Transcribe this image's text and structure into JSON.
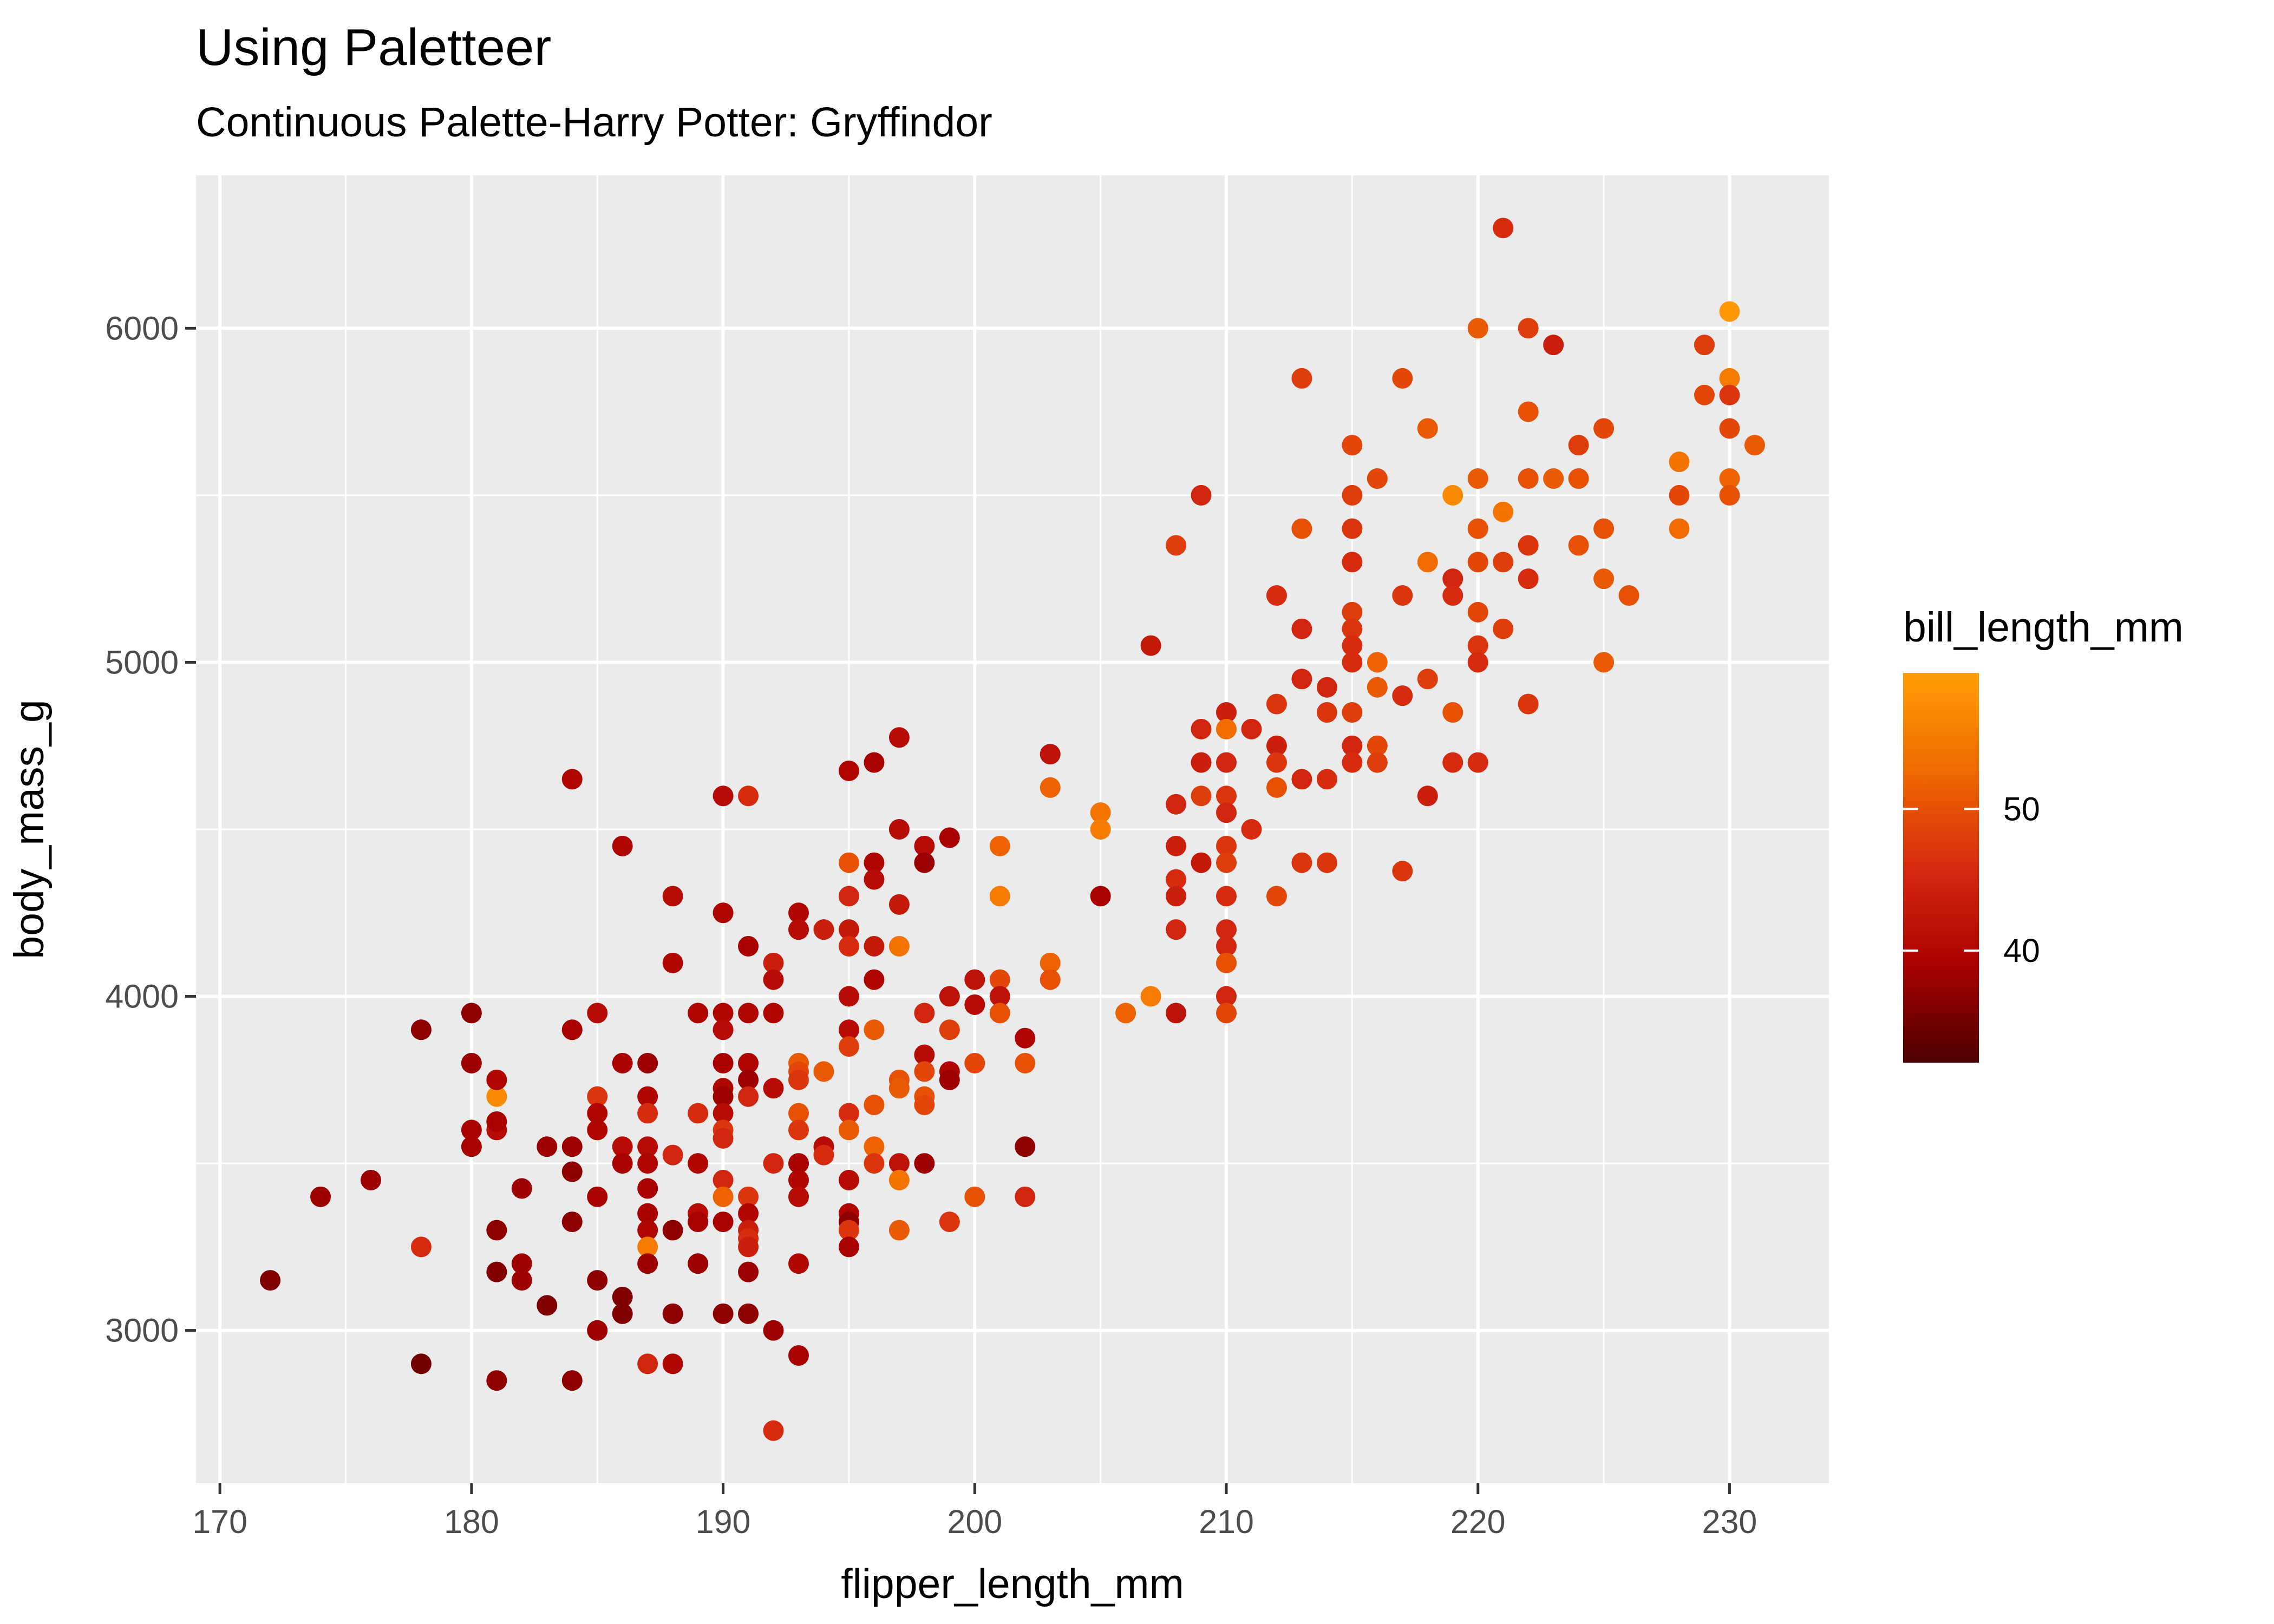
{
  "chart_data": {
    "type": "scatter",
    "title": "Using Paletteer",
    "subtitle": "Continuous Palette-Harry Potter: Gryffindor",
    "xlabel": "flipper_length_mm",
    "ylabel": "body_mass_g",
    "xlim": [
      169.05,
      233.95
    ],
    "ylim": [
      2542.5,
      6457.5
    ],
    "x_ticks": [
      170,
      180,
      190,
      200,
      210,
      220,
      230
    ],
    "y_ticks": [
      3000,
      4000,
      5000,
      6000
    ],
    "grid": true,
    "legend": {
      "title": "bill_length_mm",
      "placement": "right",
      "ticks": [
        40,
        50
      ],
      "range": [
        32.1,
        59.6
      ],
      "colors": [
        "#4b0000",
        "#a90000",
        "#d62a10",
        "#f06a00",
        "#ff9e06"
      ]
    },
    "points": [
      [
        172,
        3150,
        36
      ],
      [
        174,
        3400,
        38
      ],
      [
        176,
        3450,
        38
      ],
      [
        178,
        3900,
        37
      ],
      [
        178,
        3250,
        46
      ],
      [
        178,
        2900,
        35
      ],
      [
        180,
        3950,
        37
      ],
      [
        180,
        3800,
        38
      ],
      [
        180,
        3600,
        39
      ],
      [
        180,
        3550,
        39
      ],
      [
        181,
        3700,
        57
      ],
      [
        181,
        3750,
        40
      ],
      [
        181,
        3600,
        41
      ],
      [
        181,
        3625,
        39
      ],
      [
        181,
        3300,
        37
      ],
      [
        181,
        3175,
        36
      ],
      [
        181,
        2850,
        37
      ],
      [
        182,
        3425,
        38
      ],
      [
        182,
        3200,
        38
      ],
      [
        182,
        3150,
        38
      ],
      [
        183,
        3550,
        38
      ],
      [
        183,
        3075,
        36
      ],
      [
        184,
        4650,
        40
      ],
      [
        184,
        3900,
        39
      ],
      [
        184,
        3550,
        38
      ],
      [
        184,
        3475,
        37
      ],
      [
        184,
        3325,
        37
      ],
      [
        184,
        2850,
        37
      ],
      [
        185,
        3950,
        41
      ],
      [
        185,
        3700,
        47
      ],
      [
        185,
        3650,
        40
      ],
      [
        185,
        3600,
        40
      ],
      [
        185,
        3400,
        39
      ],
      [
        185,
        3150,
        37
      ],
      [
        185,
        3000,
        38
      ],
      [
        186,
        4450,
        40
      ],
      [
        186,
        3800,
        39
      ],
      [
        186,
        3550,
        41
      ],
      [
        186,
        3500,
        39
      ],
      [
        186,
        3100,
        36
      ],
      [
        186,
        3050,
        36
      ],
      [
        187,
        3800,
        38
      ],
      [
        187,
        3700,
        40
      ],
      [
        187,
        3650,
        46
      ],
      [
        187,
        3550,
        41
      ],
      [
        187,
        3500,
        40
      ],
      [
        187,
        3425,
        39
      ],
      [
        187,
        3350,
        39
      ],
      [
        187,
        3300,
        40
      ],
      [
        187,
        3250,
        55
      ],
      [
        187,
        3200,
        38
      ],
      [
        187,
        2900,
        45
      ],
      [
        188,
        4300,
        41
      ],
      [
        188,
        4100,
        40
      ],
      [
        188,
        3525,
        45
      ],
      [
        188,
        3300,
        37
      ],
      [
        188,
        3050,
        37
      ],
      [
        188,
        2900,
        40
      ],
      [
        189,
        3950,
        40
      ],
      [
        189,
        3650,
        46
      ],
      [
        189,
        3500,
        40
      ],
      [
        189,
        3350,
        41
      ],
      [
        189,
        3325,
        39
      ],
      [
        189,
        3200,
        38
      ],
      [
        190,
        4600,
        41
      ],
      [
        190,
        4250,
        40
      ],
      [
        190,
        3950,
        40
      ],
      [
        190,
        3900,
        41
      ],
      [
        190,
        3800,
        39
      ],
      [
        190,
        3725,
        40
      ],
      [
        190,
        3700,
        38
      ],
      [
        190,
        3650,
        41
      ],
      [
        190,
        3600,
        47
      ],
      [
        190,
        3575,
        45
      ],
      [
        190,
        3450,
        45
      ],
      [
        190,
        3400,
        52
      ],
      [
        190,
        3325,
        39
      ],
      [
        190,
        3050,
        37
      ],
      [
        191,
        4600,
        46
      ],
      [
        191,
        4150,
        39
      ],
      [
        191,
        3950,
        40
      ],
      [
        191,
        3800,
        40
      ],
      [
        191,
        3750,
        38
      ],
      [
        191,
        3700,
        45
      ],
      [
        191,
        3400,
        47
      ],
      [
        191,
        3350,
        40
      ],
      [
        191,
        3300,
        44
      ],
      [
        191,
        3275,
        46
      ],
      [
        191,
        3250,
        44
      ],
      [
        191,
        3175,
        38
      ],
      [
        191,
        3050,
        37
      ],
      [
        192,
        4100,
        44
      ],
      [
        192,
        4050,
        41
      ],
      [
        192,
        3950,
        40
      ],
      [
        192,
        3725,
        41
      ],
      [
        192,
        3500,
        45
      ],
      [
        192,
        3000,
        38
      ],
      [
        192,
        2700,
        46
      ],
      [
        193,
        4250,
        40
      ],
      [
        193,
        4200,
        41
      ],
      [
        193,
        3800,
        51
      ],
      [
        193,
        3775,
        49
      ],
      [
        193,
        3750,
        47
      ],
      [
        193,
        3650,
        50
      ],
      [
        193,
        3600,
        47
      ],
      [
        193,
        3500,
        39
      ],
      [
        193,
        3450,
        40
      ],
      [
        193,
        3400,
        41
      ],
      [
        193,
        3200,
        40
      ],
      [
        193,
        2925,
        39
      ],
      [
        194,
        4200,
        44
      ],
      [
        194,
        3775,
        51
      ],
      [
        194,
        3550,
        41
      ],
      [
        194,
        3525,
        46
      ],
      [
        195,
        4675,
        40
      ],
      [
        195,
        4400,
        50
      ],
      [
        195,
        4300,
        45
      ],
      [
        195,
        4200,
        43
      ],
      [
        195,
        4150,
        46
      ],
      [
        195,
        4000,
        41
      ],
      [
        195,
        3900,
        41
      ],
      [
        195,
        3850,
        48
      ],
      [
        195,
        3650,
        46
      ],
      [
        195,
        3600,
        51
      ],
      [
        195,
        3450,
        41
      ],
      [
        195,
        3350,
        40
      ],
      [
        195,
        3325,
        37
      ],
      [
        195,
        3300,
        47
      ],
      [
        195,
        3250,
        39
      ],
      [
        196,
        4700,
        39
      ],
      [
        196,
        4400,
        40
      ],
      [
        196,
        4350,
        41
      ],
      [
        196,
        4150,
        43
      ],
      [
        196,
        4050,
        40
      ],
      [
        196,
        3900,
        51
      ],
      [
        196,
        3675,
        50
      ],
      [
        196,
        3550,
        52
      ],
      [
        196,
        3500,
        47
      ],
      [
        197,
        4775,
        41
      ],
      [
        197,
        4500,
        41
      ],
      [
        197,
        4275,
        43
      ],
      [
        197,
        4150,
        54
      ],
      [
        197,
        3750,
        50
      ],
      [
        197,
        3725,
        51
      ],
      [
        197,
        3500,
        42
      ],
      [
        197,
        3450,
        54
      ],
      [
        197,
        3300,
        51
      ],
      [
        198,
        4450,
        41
      ],
      [
        198,
        4400,
        38
      ],
      [
        198,
        3950,
        45
      ],
      [
        198,
        3825,
        41
      ],
      [
        198,
        3775,
        49
      ],
      [
        198,
        3700,
        50
      ],
      [
        198,
        3675,
        49
      ],
      [
        198,
        3500,
        38
      ],
      [
        199,
        4475,
        39
      ],
      [
        199,
        4000,
        42
      ],
      [
        199,
        3900,
        48
      ],
      [
        199,
        3775,
        40
      ],
      [
        199,
        3750,
        38
      ],
      [
        199,
        3325,
        47
      ],
      [
        200,
        4050,
        42
      ],
      [
        200,
        3975,
        41
      ],
      [
        200,
        3800,
        49
      ],
      [
        200,
        3400,
        50
      ],
      [
        201,
        4450,
        52
      ],
      [
        201,
        4300,
        55
      ],
      [
        201,
        4050,
        49
      ],
      [
        201,
        4000,
        42
      ],
      [
        201,
        3950,
        50
      ],
      [
        202,
        3875,
        40
      ],
      [
        202,
        3800,
        50
      ],
      [
        202,
        3550,
        37
      ],
      [
        202,
        3400,
        45
      ],
      [
        203,
        4725,
        42
      ],
      [
        203,
        4625,
        52
      ],
      [
        203,
        4100,
        52
      ],
      [
        203,
        4050,
        50
      ],
      [
        205,
        4550,
        54
      ],
      [
        205,
        4500,
        55
      ],
      [
        205,
        4300,
        39
      ],
      [
        206,
        3950,
        52
      ],
      [
        207,
        4000,
        55
      ],
      [
        207,
        5050,
        43
      ],
      [
        208,
        5350,
        48
      ],
      [
        208,
        4575,
        45
      ],
      [
        208,
        4450,
        44
      ],
      [
        208,
        4350,
        46
      ],
      [
        208,
        4300,
        44
      ],
      [
        208,
        4200,
        45
      ],
      [
        208,
        3950,
        42
      ],
      [
        209,
        5500,
        45
      ],
      [
        209,
        4800,
        45
      ],
      [
        209,
        4700,
        44
      ],
      [
        209,
        4600,
        48
      ],
      [
        209,
        4400,
        43
      ],
      [
        210,
        4850,
        44
      ],
      [
        210,
        4800,
        53
      ],
      [
        210,
        4700,
        45
      ],
      [
        210,
        4600,
        47
      ],
      [
        210,
        4550,
        45
      ],
      [
        210,
        4450,
        47
      ],
      [
        210,
        4400,
        48
      ],
      [
        210,
        4300,
        46
      ],
      [
        210,
        4200,
        45
      ],
      [
        210,
        4150,
        45
      ],
      [
        210,
        4100,
        50
      ],
      [
        210,
        4000,
        45
      ],
      [
        210,
        3950,
        49
      ],
      [
        211,
        4800,
        45
      ],
      [
        211,
        4500,
        46
      ],
      [
        212,
        5200,
        46
      ],
      [
        212,
        4875,
        47
      ],
      [
        212,
        4750,
        44
      ],
      [
        212,
        4700,
        47
      ],
      [
        212,
        4625,
        50
      ],
      [
        212,
        4300,
        49
      ],
      [
        213,
        5850,
        48
      ],
      [
        213,
        5400,
        50
      ],
      [
        213,
        5100,
        45
      ],
      [
        213,
        4950,
        45
      ],
      [
        213,
        4650,
        45
      ],
      [
        213,
        4400,
        47
      ],
      [
        214,
        4925,
        45
      ],
      [
        214,
        4850,
        47
      ],
      [
        214,
        4650,
        46
      ],
      [
        214,
        4400,
        47
      ],
      [
        215,
        5650,
        49
      ],
      [
        215,
        5500,
        48
      ],
      [
        215,
        5400,
        47
      ],
      [
        215,
        5300,
        46
      ],
      [
        215,
        5150,
        48
      ],
      [
        215,
        5100,
        47
      ],
      [
        215,
        5050,
        46
      ],
      [
        215,
        5000,
        46
      ],
      [
        215,
        4850,
        48
      ],
      [
        215,
        4750,
        45
      ],
      [
        215,
        4700,
        46
      ],
      [
        216,
        5550,
        49
      ],
      [
        216,
        5000,
        52
      ],
      [
        216,
        4925,
        51
      ],
      [
        216,
        4750,
        49
      ],
      [
        216,
        4700,
        48
      ],
      [
        217,
        5850,
        49
      ],
      [
        217,
        5200,
        47
      ],
      [
        217,
        4900,
        46
      ],
      [
        217,
        4375,
        47
      ],
      [
        218,
        5700,
        51
      ],
      [
        218,
        5300,
        53
      ],
      [
        218,
        4950,
        48
      ],
      [
        218,
        4600,
        44
      ],
      [
        219,
        5500,
        57
      ],
      [
        219,
        5250,
        45
      ],
      [
        219,
        5200,
        46
      ],
      [
        219,
        4850,
        50
      ],
      [
        219,
        4700,
        46
      ],
      [
        220,
        6000,
        51
      ],
      [
        220,
        5550,
        51
      ],
      [
        220,
        5400,
        50
      ],
      [
        220,
        5300,
        49
      ],
      [
        220,
        5150,
        49
      ],
      [
        220,
        5050,
        47
      ],
      [
        220,
        5000,
        46
      ],
      [
        220,
        4700,
        46
      ],
      [
        221,
        6300,
        46
      ],
      [
        221,
        5450,
        54
      ],
      [
        221,
        5300,
        48
      ],
      [
        221,
        5100,
        48
      ],
      [
        222,
        6000,
        48
      ],
      [
        222,
        5750,
        50
      ],
      [
        222,
        5550,
        50
      ],
      [
        222,
        5350,
        47
      ],
      [
        222,
        5250,
        46
      ],
      [
        222,
        4875,
        47
      ],
      [
        223,
        5950,
        44
      ],
      [
        223,
        5550,
        51
      ],
      [
        224,
        5650,
        48
      ],
      [
        224,
        5550,
        50
      ],
      [
        224,
        5350,
        50
      ],
      [
        225,
        5700,
        49
      ],
      [
        225,
        5400,
        50
      ],
      [
        225,
        5250,
        51
      ],
      [
        225,
        5000,
        51
      ],
      [
        226,
        5200,
        50
      ],
      [
        228,
        5600,
        54
      ],
      [
        228,
        5500,
        49
      ],
      [
        228,
        5400,
        53
      ],
      [
        229,
        5950,
        48
      ],
      [
        229,
        5800,
        49
      ],
      [
        230,
        6050,
        59
      ],
      [
        230,
        5850,
        55
      ],
      [
        230,
        5800,
        47
      ],
      [
        230,
        5700,
        49
      ],
      [
        230,
        5550,
        52
      ],
      [
        230,
        5500,
        50
      ],
      [
        231,
        5650,
        51
      ]
    ]
  }
}
